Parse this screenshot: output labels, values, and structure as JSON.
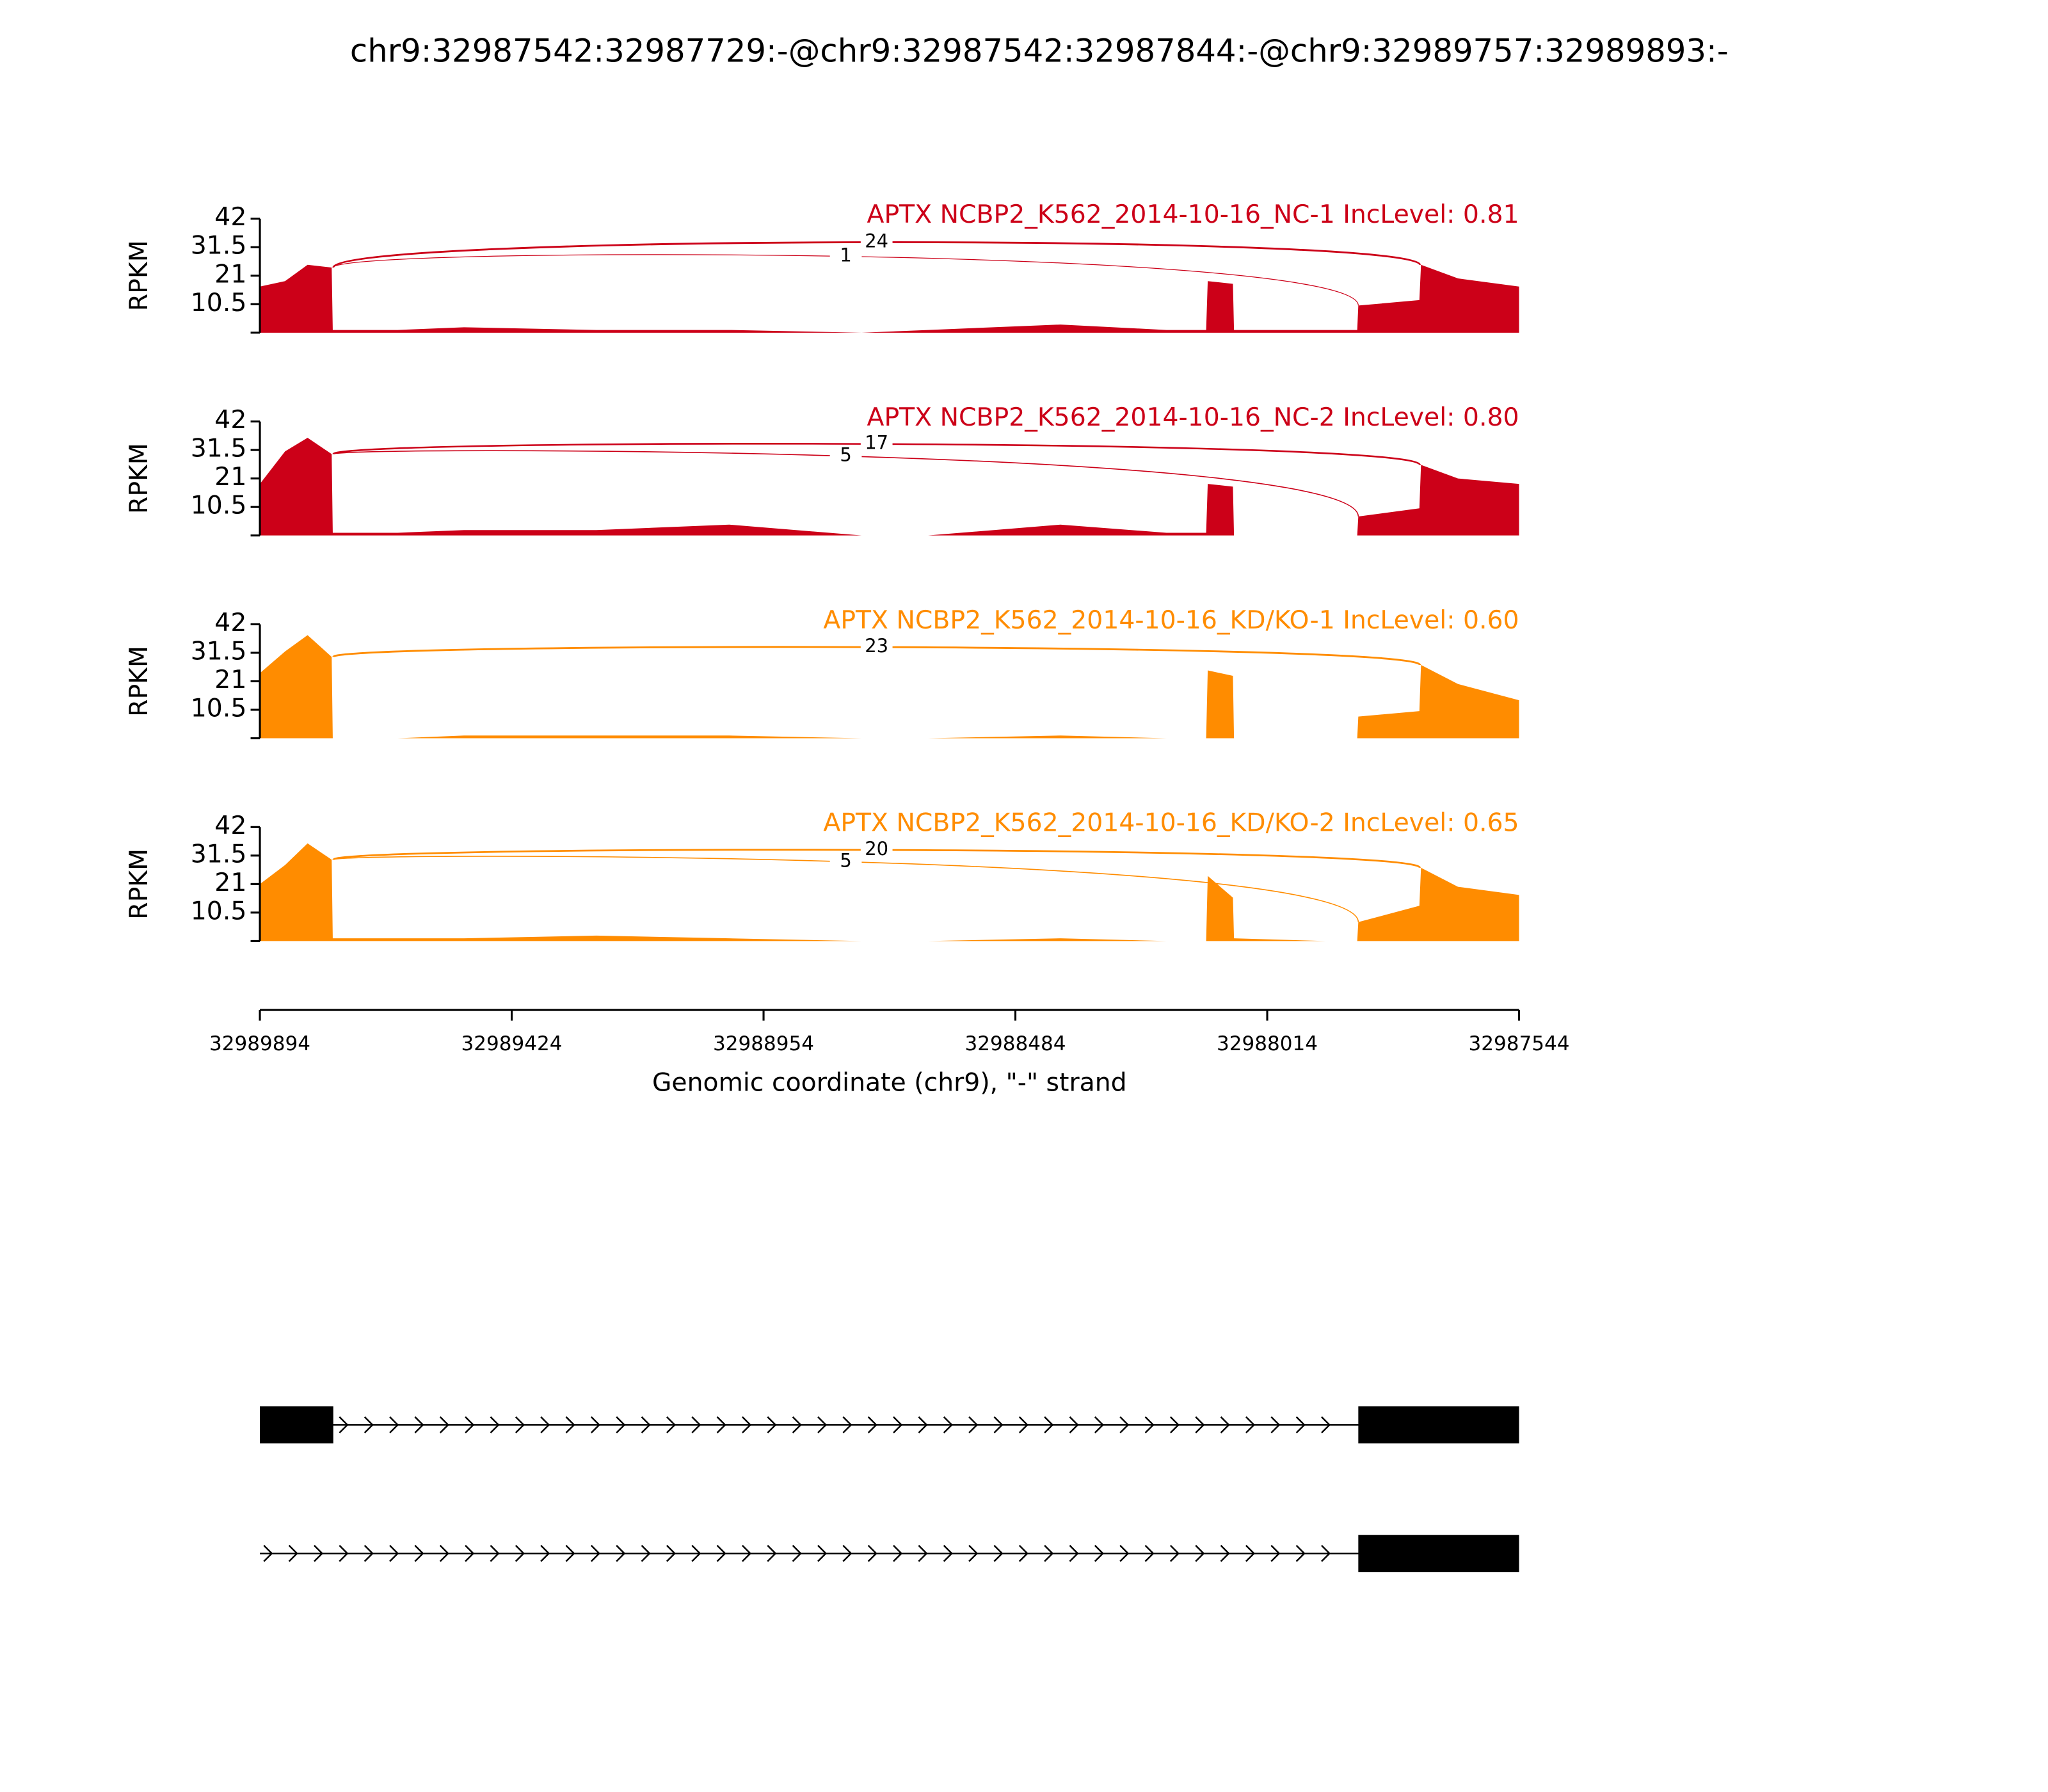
{
  "title": "chr9:32987542:32987729:-@chr9:32987542:32987844:-@chr9:32989757:32989893:-",
  "x_axis": {
    "label": "Genomic coordinate (chr9), \"-\" strand",
    "xlim": [
      32989894,
      32987544
    ],
    "xticks": [
      32989894,
      32989424,
      32988954,
      32988484,
      32988014,
      32987544
    ]
  },
  "chart_data": [
    {
      "type": "area",
      "title": "APTX NCBP2_K562_2014-10-16_NC-1 IncLevel: 0.81",
      "ylabel": "RPKM",
      "color": "#cc0018",
      "ylim": [
        0,
        42
      ],
      "yticks": [
        10.5,
        21,
        31.5,
        42
      ],
      "x": [
        32989894,
        32989847,
        32989805,
        32989760,
        32989758,
        32989637,
        32989513,
        32989266,
        32989018,
        32988771,
        32988647,
        32988400,
        32988202,
        32988128,
        32988125,
        32988078,
        32988076,
        32987905,
        32987846,
        32987844,
        32987730,
        32987727,
        32987658,
        32987544
      ],
      "values": [
        17,
        19,
        25,
        24,
        1,
        1,
        2,
        1,
        1,
        0,
        1,
        3,
        1,
        1,
        19,
        18,
        1,
        1,
        1,
        10,
        12,
        25,
        20,
        17
      ],
      "junctions": [
        {
          "start": 32989757,
          "end": 32987729,
          "count": 24
        },
        {
          "start": 32989757,
          "end": 32987844,
          "count": 1
        }
      ]
    },
    {
      "type": "area",
      "title": "APTX NCBP2_K562_2014-10-16_NC-2 IncLevel: 0.80",
      "ylabel": "RPKM",
      "color": "#cc0018",
      "ylim": [
        0,
        42
      ],
      "yticks": [
        10.5,
        21,
        31.5,
        42
      ],
      "x": [
        32989894,
        32989847,
        32989805,
        32989760,
        32989758,
        32989637,
        32989513,
        32989266,
        32989018,
        32988771,
        32988647,
        32988400,
        32988202,
        32988128,
        32988125,
        32988078,
        32988076,
        32987905,
        32987846,
        32987844,
        32987730,
        32987727,
        32987658,
        32987544
      ],
      "values": [
        19,
        31,
        36,
        30,
        1,
        1,
        2,
        2,
        4,
        0,
        0,
        4,
        1,
        1,
        19,
        18,
        0,
        0,
        0,
        7,
        10,
        26,
        21,
        19
      ],
      "junctions": [
        {
          "start": 32989757,
          "end": 32987729,
          "count": 17
        },
        {
          "start": 32989757,
          "end": 32987844,
          "count": 5
        }
      ]
    },
    {
      "type": "area",
      "title": "APTX NCBP2_K562_2014-10-16_KD/KO-1 IncLevel: 0.60",
      "ylabel": "RPKM",
      "color": "#ff8c00",
      "ylim": [
        0,
        42
      ],
      "yticks": [
        10.5,
        21,
        31.5,
        42
      ],
      "x": [
        32989894,
        32989847,
        32989805,
        32989760,
        32989758,
        32989637,
        32989513,
        32989266,
        32989018,
        32988771,
        32988647,
        32988400,
        32988202,
        32988128,
        32988125,
        32988078,
        32988076,
        32987905,
        32987846,
        32987844,
        32987730,
        32987727,
        32987658,
        32987544
      ],
      "values": [
        24,
        32,
        38,
        30,
        0,
        0,
        1,
        1,
        1,
        0,
        0,
        1,
        0,
        0,
        25,
        23,
        0,
        0,
        0,
        8,
        10,
        27,
        20,
        14
      ],
      "junctions": [
        {
          "start": 32989757,
          "end": 32987729,
          "count": 23
        }
      ]
    },
    {
      "type": "area",
      "title": "APTX NCBP2_K562_2014-10-16_KD/KO-2 IncLevel: 0.65",
      "ylabel": "RPKM",
      "color": "#ff8c00",
      "ylim": [
        0,
        42
      ],
      "yticks": [
        10.5,
        21,
        31.5,
        42
      ],
      "x": [
        32989894,
        32989847,
        32989805,
        32989760,
        32989758,
        32989637,
        32989513,
        32989266,
        32989018,
        32988771,
        32988647,
        32988400,
        32988202,
        32988128,
        32988125,
        32988078,
        32988076,
        32987905,
        32987846,
        32987844,
        32987730,
        32987727,
        32987658,
        32987544
      ],
      "values": [
        21,
        28,
        36,
        30,
        1,
        1,
        1,
        2,
        1,
        0,
        0,
        1,
        0,
        0,
        24,
        16,
        1,
        0,
        0,
        7,
        13,
        27,
        20,
        17
      ],
      "junctions": [
        {
          "start": 32989757,
          "end": 32987729,
          "count": 20
        },
        {
          "start": 32989757,
          "end": 32987844,
          "count": 5
        }
      ]
    }
  ],
  "gene_models": [
    {
      "start": 32989894,
      "end": 32987544,
      "exons": [
        [
          32989894,
          32989757
        ],
        [
          32987844,
          32987544
        ]
      ]
    },
    {
      "start": 32989894,
      "end": 32987544,
      "exons": [
        [
          32987844,
          32987544
        ]
      ]
    }
  ]
}
